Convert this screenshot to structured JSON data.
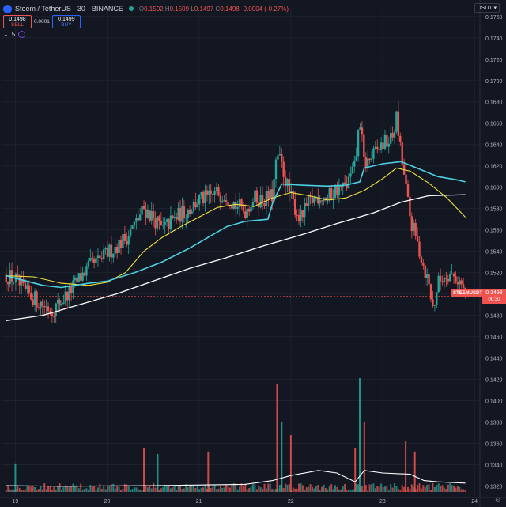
{
  "header": {
    "symbol": "Steem / TetherUS · 30 · BINANCE",
    "ohlc": {
      "o_label": "O",
      "o": "0.1502",
      "h_label": "H",
      "h": "0.1509",
      "l_label": "L",
      "l": "0.1497",
      "c_label": "C",
      "c": "0.1498",
      "change": "-0.0004 (-0.27%)"
    },
    "currency_button": "USDT ▾"
  },
  "trade": {
    "sell_price": "0.1498",
    "sell_label": "SELL",
    "spread": "0.0001",
    "buy_price": "0.1499",
    "buy_label": "BUY"
  },
  "indicators": {
    "count": "5"
  },
  "price_tag": {
    "symbol": "STEEMUSDT",
    "price": "0.1498",
    "countdown": "00:30"
  },
  "colors": {
    "background": "#131722",
    "grid": "#1e222d",
    "up": "#26a69a",
    "down": "#ef5350",
    "ma_cyan": "#4dd0e1",
    "ma_yellow": "#f0e040",
    "ma_white": "#ffffff",
    "text": "#b2b5be"
  },
  "chart_data": {
    "type": "candlestick",
    "y_ticks": [
      "0.1760",
      "0.1740",
      "0.1720",
      "0.1700",
      "0.1680",
      "0.1660",
      "0.1640",
      "0.1620",
      "0.1600",
      "0.1580",
      "0.1560",
      "0.1540",
      "0.1520",
      "0.1500",
      "0.1480",
      "0.1460",
      "0.1440",
      "0.1420",
      "0.1400",
      "0.1380",
      "0.1360",
      "0.1340",
      "0.1320"
    ],
    "ylim": [
      0.131,
      0.1768
    ],
    "x_ticks": [
      "19",
      "20",
      "21",
      "22",
      "23",
      "24"
    ],
    "xlim": [
      18.85,
      24.05
    ],
    "price_series_close": [
      [
        18.9,
        0.1518
      ],
      [
        19.0,
        0.1513
      ],
      [
        19.1,
        0.1502
      ],
      [
        19.2,
        0.1496
      ],
      [
        19.3,
        0.149
      ],
      [
        19.4,
        0.1485
      ],
      [
        19.5,
        0.1493
      ],
      [
        19.6,
        0.1503
      ],
      [
        19.7,
        0.1515
      ],
      [
        19.8,
        0.1525
      ],
      [
        19.9,
        0.153
      ],
      [
        20.0,
        0.1538
      ],
      [
        20.1,
        0.1545
      ],
      [
        20.2,
        0.1552
      ],
      [
        20.3,
        0.1565
      ],
      [
        20.4,
        0.158
      ],
      [
        20.5,
        0.1572
      ],
      [
        20.6,
        0.156
      ],
      [
        20.7,
        0.1568
      ],
      [
        20.8,
        0.1575
      ],
      [
        20.9,
        0.158
      ],
      [
        21.0,
        0.1588
      ],
      [
        21.1,
        0.159
      ],
      [
        21.2,
        0.1595
      ],
      [
        21.3,
        0.1593
      ],
      [
        21.4,
        0.1583
      ],
      [
        21.5,
        0.1578
      ],
      [
        21.6,
        0.159
      ],
      [
        21.7,
        0.1588
      ],
      [
        21.8,
        0.1592
      ],
      [
        21.85,
        0.163
      ],
      [
        21.9,
        0.162
      ],
      [
        22.0,
        0.159
      ],
      [
        22.1,
        0.157
      ],
      [
        22.2,
        0.1585
      ],
      [
        22.3,
        0.1592
      ],
      [
        22.4,
        0.159
      ],
      [
        22.5,
        0.1598
      ],
      [
        22.6,
        0.16
      ],
      [
        22.7,
        0.162
      ],
      [
        22.75,
        0.1665
      ],
      [
        22.8,
        0.162
      ],
      [
        22.9,
        0.163
      ],
      [
        23.0,
        0.164
      ],
      [
        23.1,
        0.1645
      ],
      [
        23.15,
        0.1665
      ],
      [
        23.2,
        0.163
      ],
      [
        23.3,
        0.157
      ],
      [
        23.4,
        0.154
      ],
      [
        23.5,
        0.151
      ],
      [
        23.55,
        0.1485
      ],
      [
        23.6,
        0.151
      ],
      [
        23.7,
        0.152
      ],
      [
        23.8,
        0.1515
      ],
      [
        23.85,
        0.151
      ],
      [
        23.9,
        0.1498
      ]
    ],
    "ma_cyan": [
      [
        18.9,
        0.1517
      ],
      [
        19.3,
        0.1508
      ],
      [
        19.5,
        0.1506
      ],
      [
        19.8,
        0.151
      ],
      [
        20.0,
        0.1512
      ],
      [
        20.3,
        0.152
      ],
      [
        20.6,
        0.153
      ],
      [
        20.9,
        0.1543
      ],
      [
        21.1,
        0.1553
      ],
      [
        21.3,
        0.1563
      ],
      [
        21.5,
        0.1568
      ],
      [
        21.75,
        0.157
      ],
      [
        21.8,
        0.1585
      ],
      [
        21.9,
        0.1603
      ],
      [
        22.1,
        0.1602
      ],
      [
        22.4,
        0.1601
      ],
      [
        22.6,
        0.1602
      ],
      [
        22.75,
        0.1605
      ],
      [
        22.8,
        0.1618
      ],
      [
        23.0,
        0.1622
      ],
      [
        23.2,
        0.1624
      ],
      [
        23.4,
        0.1617
      ],
      [
        23.6,
        0.161
      ],
      [
        23.8,
        0.1607
      ],
      [
        23.9,
        0.1605
      ]
    ],
    "ma_yellow": [
      [
        18.9,
        0.1517
      ],
      [
        19.2,
        0.1516
      ],
      [
        19.5,
        0.151
      ],
      [
        19.8,
        0.1508
      ],
      [
        20.0,
        0.1511
      ],
      [
        20.2,
        0.152
      ],
      [
        20.4,
        0.154
      ],
      [
        20.6,
        0.1553
      ],
      [
        20.8,
        0.1563
      ],
      [
        21.0,
        0.1572
      ],
      [
        21.2,
        0.1581
      ],
      [
        21.4,
        0.1584
      ],
      [
        21.6,
        0.1582
      ],
      [
        21.8,
        0.159
      ],
      [
        22.0,
        0.1595
      ],
      [
        22.2,
        0.1592
      ],
      [
        22.4,
        0.1588
      ],
      [
        22.6,
        0.159
      ],
      [
        22.8,
        0.1597
      ],
      [
        23.0,
        0.1608
      ],
      [
        23.15,
        0.1618
      ],
      [
        23.3,
        0.1615
      ],
      [
        23.5,
        0.1604
      ],
      [
        23.7,
        0.159
      ],
      [
        23.9,
        0.1572
      ]
    ],
    "ma_white": [
      [
        18.9,
        0.1475
      ],
      [
        19.3,
        0.148
      ],
      [
        19.7,
        0.149
      ],
      [
        20.1,
        0.15
      ],
      [
        20.5,
        0.1512
      ],
      [
        20.9,
        0.1524
      ],
      [
        21.3,
        0.1534
      ],
      [
        21.7,
        0.1545
      ],
      [
        22.1,
        0.1555
      ],
      [
        22.5,
        0.1566
      ],
      [
        22.9,
        0.1576
      ],
      [
        23.2,
        0.1586
      ],
      [
        23.5,
        0.1592
      ],
      [
        23.9,
        0.1593
      ]
    ],
    "volume_scale_max": 1.0,
    "volume_ma": [
      [
        18.9,
        0.05
      ],
      [
        19.5,
        0.045
      ],
      [
        20.5,
        0.05
      ],
      [
        21.5,
        0.06
      ],
      [
        21.8,
        0.09
      ],
      [
        22.0,
        0.13
      ],
      [
        22.3,
        0.17
      ],
      [
        22.5,
        0.15
      ],
      [
        22.7,
        0.08
      ],
      [
        22.8,
        0.17
      ],
      [
        23.0,
        0.15
      ],
      [
        23.3,
        0.14
      ],
      [
        23.45,
        0.09
      ],
      [
        23.6,
        0.08
      ],
      [
        23.9,
        0.07
      ]
    ],
    "volume_spikes": [
      [
        21.85,
        0.85,
        "down"
      ],
      [
        21.9,
        0.55,
        "up"
      ],
      [
        22.0,
        0.45,
        "down"
      ],
      [
        22.75,
        0.9,
        "up"
      ],
      [
        22.8,
        0.55,
        "down"
      ],
      [
        22.7,
        0.35,
        "down"
      ],
      [
        23.25,
        0.4,
        "down"
      ],
      [
        23.35,
        0.32,
        "down"
      ],
      [
        19.0,
        0.22,
        "up"
      ],
      [
        20.4,
        0.35,
        "down"
      ],
      [
        20.55,
        0.3,
        "up"
      ],
      [
        21.1,
        0.32,
        "down"
      ]
    ]
  }
}
